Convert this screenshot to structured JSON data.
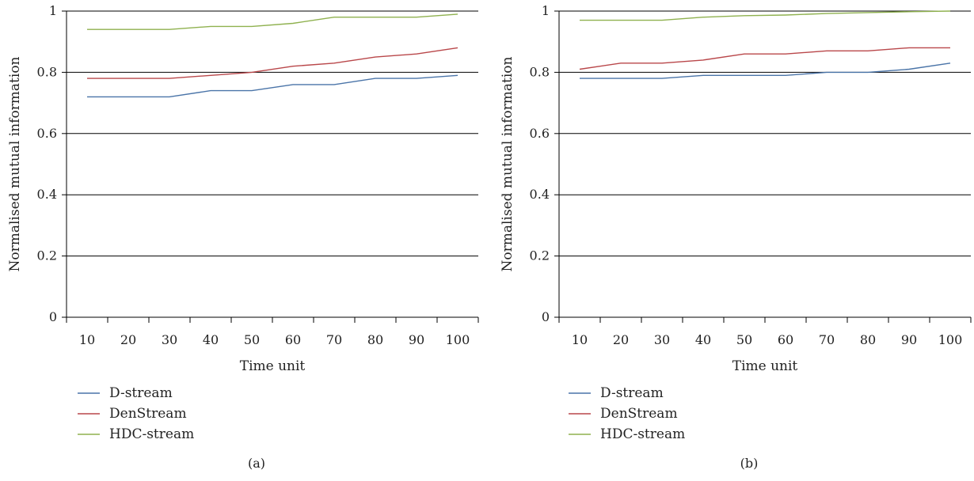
{
  "colors": {
    "d_stream": "#4a74a8",
    "denstream": "#b9474a",
    "hdc_stream": "#8fb14f",
    "grid": "#000000"
  },
  "chart_data": [
    {
      "type": "line",
      "panel_label": "(a)",
      "xlabel": "Time unit",
      "ylabel": "Normalised mutual information",
      "categories": [
        "10",
        "20",
        "30",
        "40",
        "50",
        "60",
        "70",
        "80",
        "90",
        "100"
      ],
      "ylim": [
        0,
        1
      ],
      "yticks": [
        "0",
        "0.2",
        "0.4",
        "0.6",
        "0.8",
        "1"
      ],
      "grid": "horizontal",
      "legend_position": "bottom-left",
      "series": [
        {
          "name": "D-stream",
          "color": "#4a74a8",
          "values": [
            0.72,
            0.72,
            0.72,
            0.74,
            0.74,
            0.76,
            0.76,
            0.78,
            0.78,
            0.79
          ]
        },
        {
          "name": "DenStream",
          "color": "#b9474a",
          "values": [
            0.78,
            0.78,
            0.78,
            0.79,
            0.8,
            0.82,
            0.83,
            0.85,
            0.86,
            0.88
          ]
        },
        {
          "name": "HDC-stream",
          "color": "#8fb14f",
          "values": [
            0.94,
            0.94,
            0.94,
            0.95,
            0.95,
            0.96,
            0.98,
            0.98,
            0.98,
            0.99
          ]
        }
      ]
    },
    {
      "type": "line",
      "panel_label": "(b)",
      "xlabel": "Time unit",
      "ylabel": "Normalised mutual information",
      "categories": [
        "10",
        "20",
        "30",
        "40",
        "50",
        "60",
        "70",
        "80",
        "90",
        "100"
      ],
      "ylim": [
        0,
        1
      ],
      "yticks": [
        "0",
        "0.2",
        "0.4",
        "0.6",
        "0.8",
        "1"
      ],
      "grid": "horizontal",
      "legend_position": "bottom-left",
      "series": [
        {
          "name": "D-stream",
          "color": "#4a74a8",
          "values": [
            0.78,
            0.78,
            0.78,
            0.79,
            0.79,
            0.79,
            0.8,
            0.8,
            0.81,
            0.83
          ]
        },
        {
          "name": "DenStream",
          "color": "#b9474a",
          "values": [
            0.81,
            0.83,
            0.83,
            0.84,
            0.86,
            0.86,
            0.87,
            0.87,
            0.88,
            0.88
          ]
        },
        {
          "name": "HDC-stream",
          "color": "#8fb14f",
          "values": [
            0.97,
            0.97,
            0.97,
            0.98,
            0.985,
            0.987,
            0.992,
            0.995,
            0.998,
            1.0
          ]
        }
      ]
    }
  ]
}
